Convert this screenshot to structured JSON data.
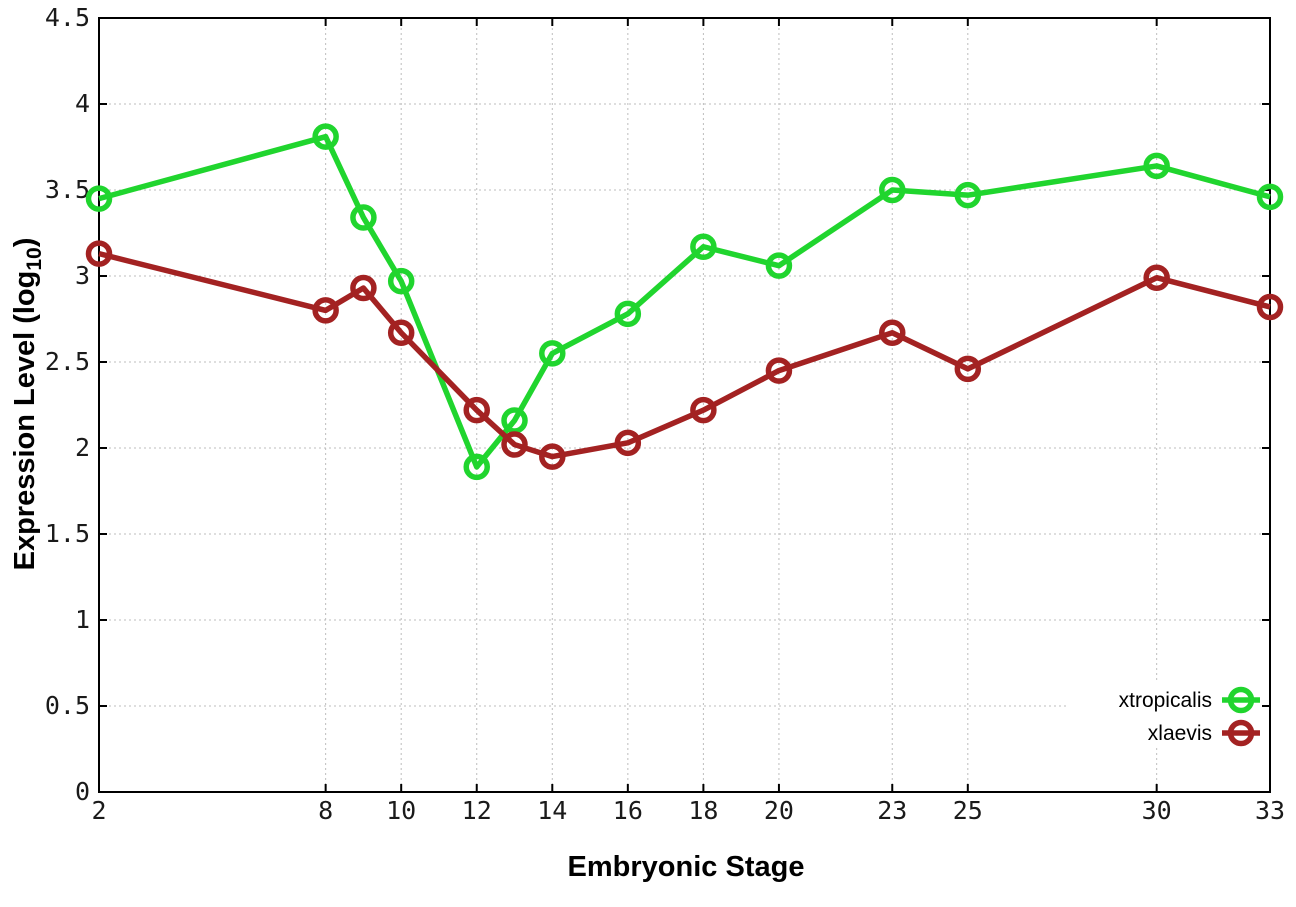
{
  "chart_data": {
    "type": "line",
    "title": "",
    "xlabel": "Embryonic Stage",
    "ylabel": "Expression Level (log10)",
    "ylabel_parts": {
      "pre": "Expression Level (log",
      "sub": "10",
      "post": ")"
    },
    "xlim": [
      2,
      33
    ],
    "ylim": [
      0,
      4.5
    ],
    "grid": true,
    "legend_position": "bottom-right",
    "x": [
      2,
      8,
      9,
      10,
      12,
      13,
      14,
      16,
      18,
      20,
      23,
      25,
      30,
      33
    ],
    "xticks": {
      "values": [
        2,
        8,
        10,
        12,
        14,
        16,
        18,
        20,
        23,
        25,
        30,
        33
      ],
      "labels": [
        "2",
        "8",
        "10",
        "12",
        "14",
        "16",
        "18",
        "20",
        "23",
        "25",
        "30",
        "33"
      ]
    },
    "yticks": {
      "values": [
        0,
        0.5,
        1,
        1.5,
        2,
        2.5,
        3,
        3.5,
        4,
        4.5
      ],
      "labels": [
        "0",
        "0.5",
        "1",
        "1.5",
        "2",
        "2.5",
        "3",
        "3.5",
        "4",
        "4.5"
      ]
    },
    "series": [
      {
        "name": "xtropicalis",
        "color": "#20d52e",
        "marker": "open-circle",
        "values": [
          3.45,
          3.81,
          3.34,
          2.97,
          1.89,
          2.16,
          2.55,
          2.78,
          3.17,
          3.06,
          3.5,
          3.47,
          3.64,
          3.46
        ]
      },
      {
        "name": "xlaevis",
        "color": "#a32222",
        "marker": "open-circle",
        "values": [
          3.13,
          2.8,
          2.93,
          2.67,
          2.22,
          2.02,
          1.95,
          2.03,
          2.22,
          2.45,
          2.67,
          2.46,
          2.99,
          2.82
        ]
      }
    ],
    "colors": {
      "background": "#ffffff",
      "grid": "#bdbdbd",
      "axis": "#000000",
      "tick_label": "#1a1a1a"
    }
  }
}
